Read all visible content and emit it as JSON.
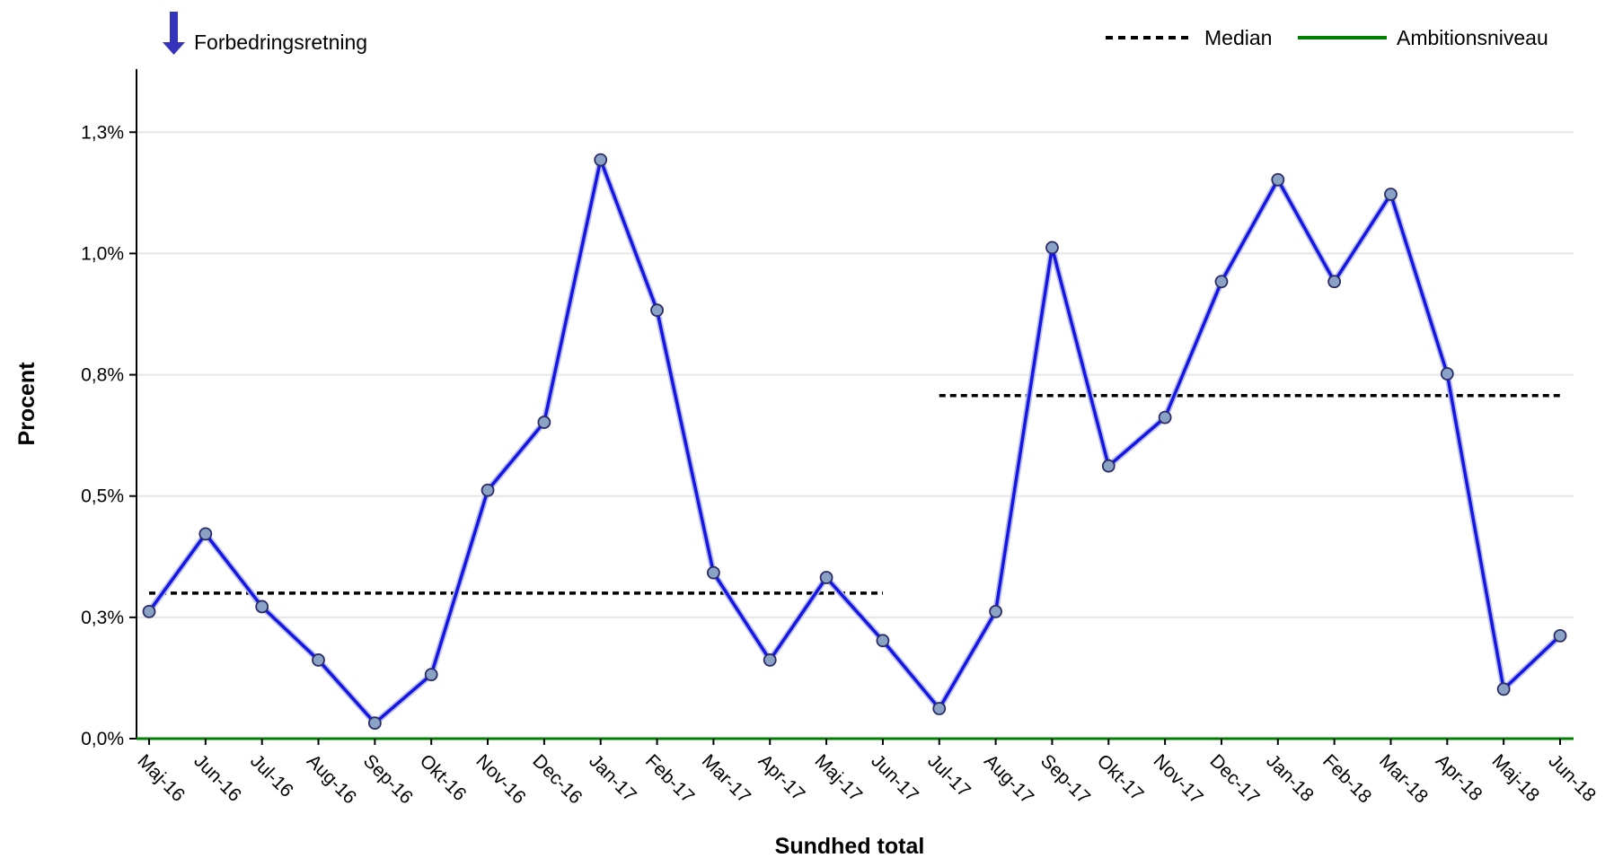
{
  "chart_data": {
    "type": "line",
    "title": "",
    "xlabel": "Sundhed total",
    "ylabel": "Procent",
    "direction_label": "Forbedringsretning",
    "direction_icon": "arrow-down-icon",
    "ylim": [
      0,
      0.0138
    ],
    "yticks": [
      {
        "value": 0.0,
        "label": "0,0%"
      },
      {
        "value": 0.0025,
        "label": "0,3%"
      },
      {
        "value": 0.005,
        "label": "0,5%"
      },
      {
        "value": 0.0075,
        "label": "0,8%"
      },
      {
        "value": 0.01,
        "label": "1,0%"
      },
      {
        "value": 0.0125,
        "label": "1,3%"
      }
    ],
    "grid": true,
    "legend_position": "top-right",
    "categories": [
      "Maj-16",
      "Jun-16",
      "Jul-16",
      "Aug-16",
      "Sep-16",
      "Okt-16",
      "Nov-16",
      "Dec-16",
      "Jan-17",
      "Feb-17",
      "Mar-17",
      "Apr-17",
      "Maj-17",
      "Jun-17",
      "Jul-17",
      "Aug-17",
      "Sep-17",
      "Okt-17",
      "Nov-17",
      "Dec-17",
      "Jan-18",
      "Feb-18",
      "Mar-18",
      "Apr-18",
      "Maj-18",
      "Jun-18"
    ],
    "series": [
      {
        "values": [
          0.00262,
          0.00422,
          0.00272,
          0.00162,
          0.00032,
          0.00132,
          0.00512,
          0.00652,
          0.01193,
          0.00883,
          0.00342,
          0.00162,
          0.00332,
          0.00202,
          0.00062,
          0.00262,
          0.01012,
          0.00562,
          0.00662,
          0.00942,
          0.01152,
          0.00942,
          0.01122,
          0.00752,
          0.00102,
          0.00212
        ],
        "color": "#1515e6",
        "marker_color": "#8aa2c4"
      }
    ],
    "median": {
      "label": "Median",
      "color": "#000000",
      "segments": [
        {
          "from": "Maj-16",
          "to": "Jun-17",
          "value": 0.003
        },
        {
          "from": "Jul-17",
          "to": "Jun-18",
          "value": 0.00707
        }
      ]
    },
    "ambition": {
      "label": "Ambitionsniveau",
      "color": "#008000",
      "value": 0.0
    }
  }
}
